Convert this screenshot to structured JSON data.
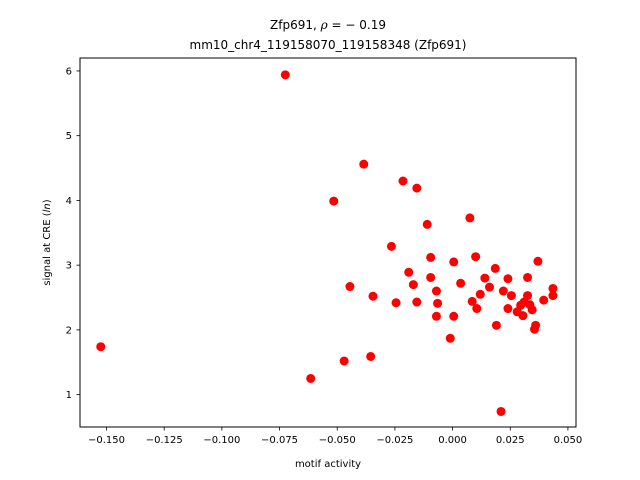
{
  "chart_data": {
    "type": "scatter",
    "title_line1": "Zfp691, ",
    "title_rho_symbol": "ρ",
    "title_rho_value": " = − 0.19",
    "title_line2": "mm10_chr4_119158070_119158348 (Zfp691)",
    "xlabel": "motif activity",
    "ylabel_prefix": "signal at CRE (",
    "ylabel_italic": "ln",
    "ylabel_suffix": ")",
    "xlim": [
      -0.1615,
      0.0535
    ],
    "ylim": [
      0.5,
      6.2
    ],
    "x_ticks": [
      -0.15,
      -0.125,
      -0.1,
      -0.075,
      -0.05,
      -0.025,
      0.0,
      0.025,
      0.05
    ],
    "x_tick_labels": [
      "−0.150",
      "−0.125",
      "−0.100",
      "−0.075",
      "−0.050",
      "−0.025",
      "0.000",
      "0.025",
      "0.050"
    ],
    "y_ticks": [
      1,
      2,
      3,
      4,
      5,
      6
    ],
    "y_tick_labels": [
      "1",
      "2",
      "3",
      "4",
      "5",
      "6"
    ],
    "marker_color": "#ff0000",
    "grid": false,
    "points": [
      {
        "x": -0.1525,
        "y": 1.74
      },
      {
        "x": -0.0725,
        "y": 5.94
      },
      {
        "x": -0.0615,
        "y": 1.25
      },
      {
        "x": -0.0515,
        "y": 3.99
      },
      {
        "x": -0.047,
        "y": 1.52
      },
      {
        "x": -0.0445,
        "y": 2.67
      },
      {
        "x": -0.0385,
        "y": 4.56
      },
      {
        "x": -0.0355,
        "y": 1.59
      },
      {
        "x": -0.0345,
        "y": 2.52
      },
      {
        "x": -0.0265,
        "y": 3.29
      },
      {
        "x": -0.0245,
        "y": 2.42
      },
      {
        "x": -0.0215,
        "y": 4.3
      },
      {
        "x": -0.019,
        "y": 2.89
      },
      {
        "x": -0.017,
        "y": 2.7
      },
      {
        "x": -0.0155,
        "y": 4.19
      },
      {
        "x": -0.0155,
        "y": 2.43
      },
      {
        "x": -0.011,
        "y": 3.63
      },
      {
        "x": -0.0095,
        "y": 3.12
      },
      {
        "x": -0.0095,
        "y": 2.81
      },
      {
        "x": -0.007,
        "y": 2.6
      },
      {
        "x": -0.0065,
        "y": 2.41
      },
      {
        "x": -0.007,
        "y": 2.21
      },
      {
        "x": -0.001,
        "y": 1.87
      },
      {
        "x": 0.0005,
        "y": 3.05
      },
      {
        "x": 0.0005,
        "y": 2.21
      },
      {
        "x": 0.0035,
        "y": 2.72
      },
      {
        "x": 0.0075,
        "y": 3.73
      },
      {
        "x": 0.0085,
        "y": 2.44
      },
      {
        "x": 0.01,
        "y": 3.13
      },
      {
        "x": 0.0105,
        "y": 2.33
      },
      {
        "x": 0.012,
        "y": 2.55
      },
      {
        "x": 0.014,
        "y": 2.8
      },
      {
        "x": 0.016,
        "y": 2.66
      },
      {
        "x": 0.0185,
        "y": 2.95
      },
      {
        "x": 0.019,
        "y": 2.07
      },
      {
        "x": 0.021,
        "y": 0.74
      },
      {
        "x": 0.022,
        "y": 2.6
      },
      {
        "x": 0.024,
        "y": 2.79
      },
      {
        "x": 0.024,
        "y": 2.33
      },
      {
        "x": 0.0255,
        "y": 2.53
      },
      {
        "x": 0.028,
        "y": 2.28
      },
      {
        "x": 0.0295,
        "y": 2.38
      },
      {
        "x": 0.0305,
        "y": 2.22
      },
      {
        "x": 0.031,
        "y": 2.43
      },
      {
        "x": 0.0325,
        "y": 2.81
      },
      {
        "x": 0.0325,
        "y": 2.53
      },
      {
        "x": 0.0335,
        "y": 2.39
      },
      {
        "x": 0.0345,
        "y": 2.31
      },
      {
        "x": 0.0355,
        "y": 2.01
      },
      {
        "x": 0.036,
        "y": 2.07
      },
      {
        "x": 0.037,
        "y": 3.06
      },
      {
        "x": 0.0395,
        "y": 2.46
      },
      {
        "x": 0.0435,
        "y": 2.64
      },
      {
        "x": 0.0435,
        "y": 2.53
      }
    ]
  }
}
